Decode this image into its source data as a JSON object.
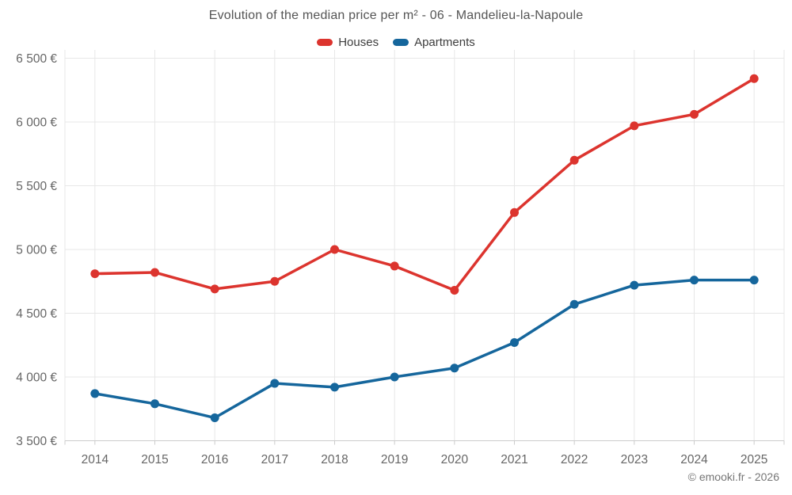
{
  "attribution": "© emooki.fr - 2026",
  "chart_data": {
    "type": "line",
    "title": "Evolution of the median price per m² - 06 - Mandelieu-la-Napoule",
    "categories": [
      "2014",
      "2015",
      "2016",
      "2017",
      "2018",
      "2019",
      "2020",
      "2021",
      "2022",
      "2023",
      "2024",
      "2025"
    ],
    "series": [
      {
        "name": "Houses",
        "color": "#dc342e",
        "values": [
          4810,
          4820,
          4690,
          4750,
          5000,
          4870,
          4680,
          5290,
          5700,
          5970,
          6060,
          6340
        ]
      },
      {
        "name": "Apartments",
        "color": "#15669c",
        "values": [
          3870,
          3790,
          3680,
          3950,
          3920,
          4000,
          4070,
          4270,
          4570,
          4720,
          4760,
          4760
        ]
      }
    ],
    "ylim": [
      3500,
      6500
    ],
    "ytick_values": [
      3500,
      4000,
      4500,
      5000,
      5500,
      6000,
      6500
    ],
    "ytick_labels": [
      "3 500 €",
      "4 000 €",
      "4 500 €",
      "5 000 €",
      "5 500 €",
      "6 000 €",
      "6 500 €"
    ],
    "currency_suffix": "€",
    "grid": true,
    "legend_position": "top",
    "grid_color": "#e7e7e7",
    "axis_line_color": "#cccccc",
    "axis_label_color": "#666666"
  }
}
